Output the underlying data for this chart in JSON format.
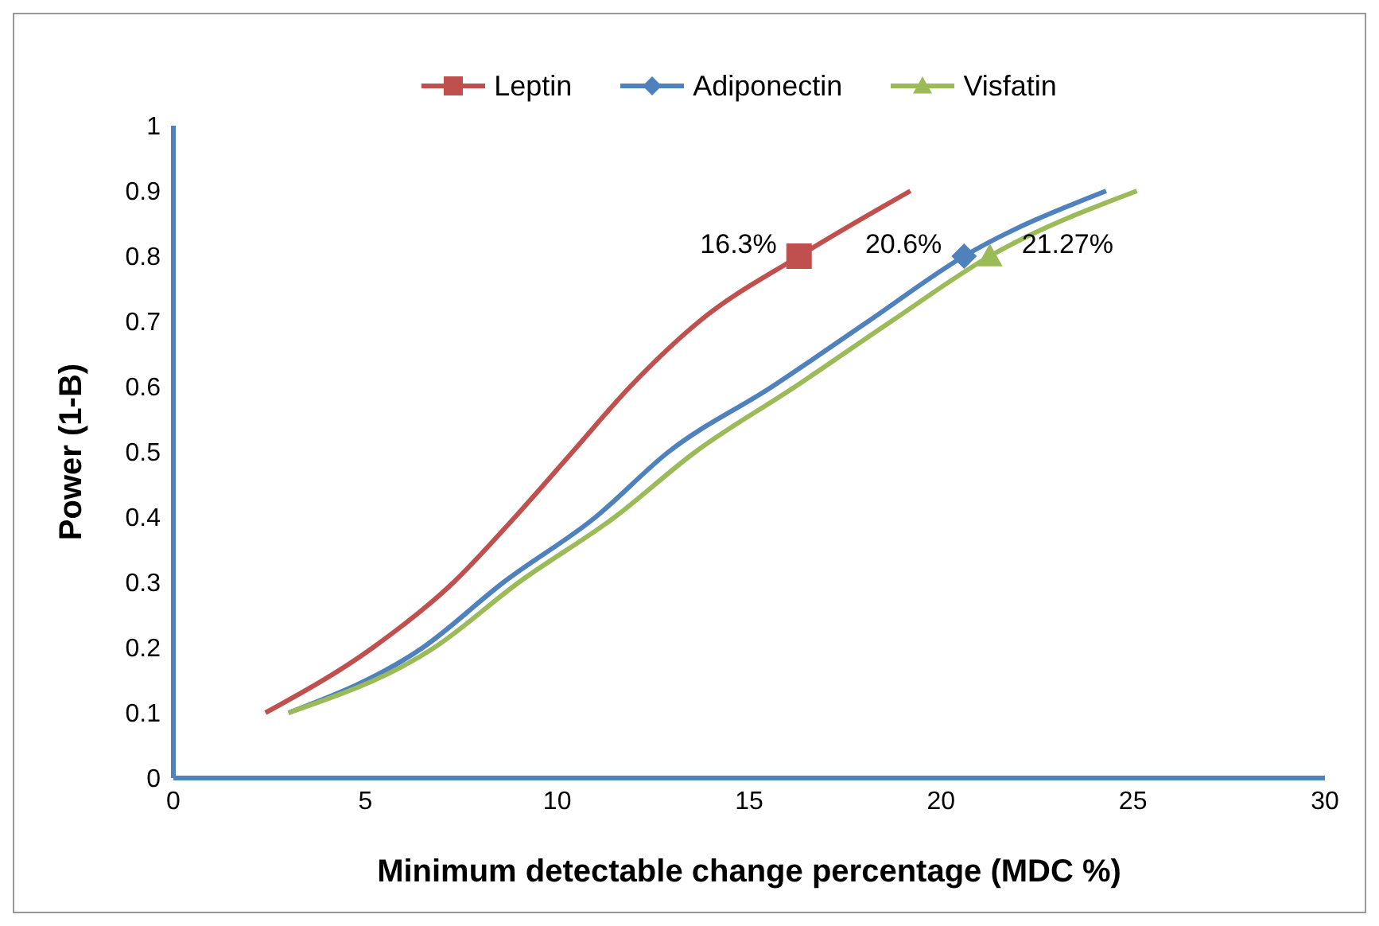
{
  "chart_data": {
    "type": "line",
    "xlabel": "Minimum detectable change percentage  (MDC %)",
    "ylabel": "Power (1-B)",
    "xlim": [
      0,
      30
    ],
    "xticks": [
      0,
      5,
      10,
      15,
      20,
      25,
      30
    ],
    "ylim": [
      0,
      1
    ],
    "yticks": [
      0,
      0.1,
      0.2,
      0.3,
      0.4,
      0.5,
      0.6,
      0.7,
      0.8,
      0.9,
      1
    ],
    "legend": "top",
    "series": [
      {
        "name": "Leptin",
        "color": "#c0504d",
        "x": [
          2.4,
          5.2,
          7.3,
          8.9,
          10.4,
          11.9,
          13.7,
          16.3,
          19.2
        ],
        "values": [
          0.1,
          0.2,
          0.3,
          0.4,
          0.5,
          0.6,
          0.7,
          0.8,
          0.9
        ]
      },
      {
        "name": "Adiponectin",
        "color": "#4f81bd",
        "x": [
          3,
          6.5,
          8.6,
          11,
          12.9,
          15.6,
          18.1,
          20.6,
          24.3
        ],
        "values": [
          0.1,
          0.2,
          0.3,
          0.4,
          0.5,
          0.6,
          0.7,
          0.8,
          0.9
        ]
      },
      {
        "name": "Visfatin",
        "color": "#9bbb59",
        "x": [
          3,
          6.8,
          9,
          11.5,
          13.6,
          16.2,
          18.7,
          21.27,
          25.1
        ],
        "values": [
          0.1,
          0.2,
          0.3,
          0.4,
          0.5,
          0.6,
          0.7,
          0.8,
          0.9
        ]
      },
      {
        "type": "scatter",
        "color": "#c0504d",
        "marker": "square",
        "x": [
          16.3
        ],
        "values": [
          0.8
        ]
      },
      {
        "type": "scatter",
        "color": "#4f81bd",
        "marker": "diamond",
        "x": [
          20.6
        ],
        "values": [
          0.8
        ]
      },
      {
        "type": "scatter",
        "color": "#9bbb59",
        "marker": "triangle",
        "x": [
          21.27
        ],
        "values": [
          0.8
        ]
      }
    ],
    "annotations": [
      {
        "text": "16.3%",
        "x": 16.3,
        "y": 0.8
      },
      {
        "text": "20.6%",
        "x": 20.6,
        "y": 0.8
      },
      {
        "text": "21.27%",
        "x": 21.27,
        "y": 0.8
      }
    ]
  }
}
